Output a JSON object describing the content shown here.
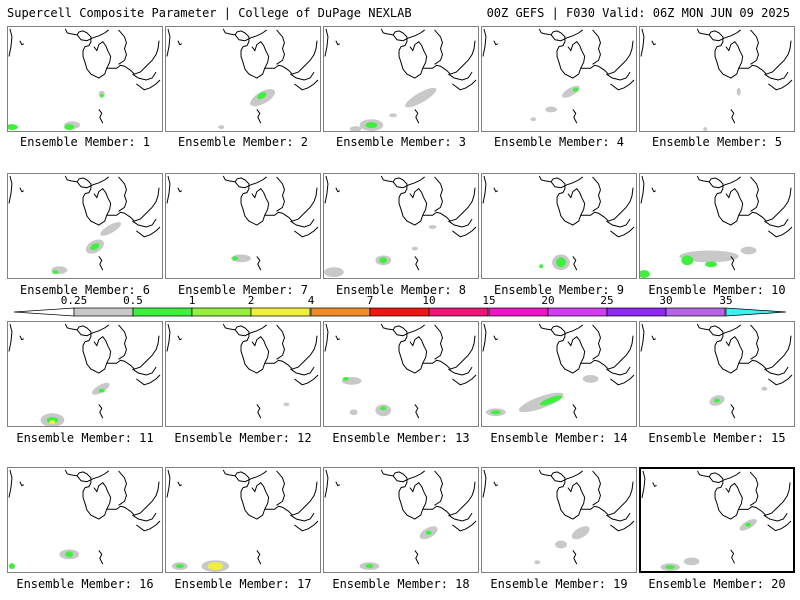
{
  "header": {
    "left": "Supercell Composite Parameter | College of DuPage NEXLAB",
    "right": "00Z GEFS | F030 Valid: 06Z MON JUN 09 2025"
  },
  "members": [
    {
      "label": "Ensemble Member: 1"
    },
    {
      "label": "Ensemble Member: 2"
    },
    {
      "label": "Ensemble Member: 3"
    },
    {
      "label": "Ensemble Member: 4"
    },
    {
      "label": "Ensemble Member: 5"
    },
    {
      "label": "Ensemble Member: 6"
    },
    {
      "label": "Ensemble Member: 7"
    },
    {
      "label": "Ensemble Member: 8"
    },
    {
      "label": "Ensemble Member: 9"
    },
    {
      "label": "Ensemble Member: 10"
    },
    {
      "label": "Ensemble Member: 11"
    },
    {
      "label": "Ensemble Member: 12"
    },
    {
      "label": "Ensemble Member: 13"
    },
    {
      "label": "Ensemble Member: 14"
    },
    {
      "label": "Ensemble Member: 15"
    },
    {
      "label": "Ensemble Member: 16"
    },
    {
      "label": "Ensemble Member: 17"
    },
    {
      "label": "Ensemble Member: 18"
    },
    {
      "label": "Ensemble Member: 19"
    },
    {
      "label": "Ensemble Member: 20"
    }
  ],
  "colorbar": {
    "levels": [
      "0.25",
      "0.5",
      "1",
      "2",
      "4",
      "7",
      "10",
      "15",
      "20",
      "25",
      "30",
      "35"
    ],
    "colors": [
      "#c8c8c8",
      "#3cf03c",
      "#96ef3c",
      "#f0f03c",
      "#f08c28",
      "#f01414",
      "#f01478",
      "#f014c8",
      "#d23cf0",
      "#8c28f0",
      "#b464e6",
      "#3cf0f0"
    ]
  }
}
